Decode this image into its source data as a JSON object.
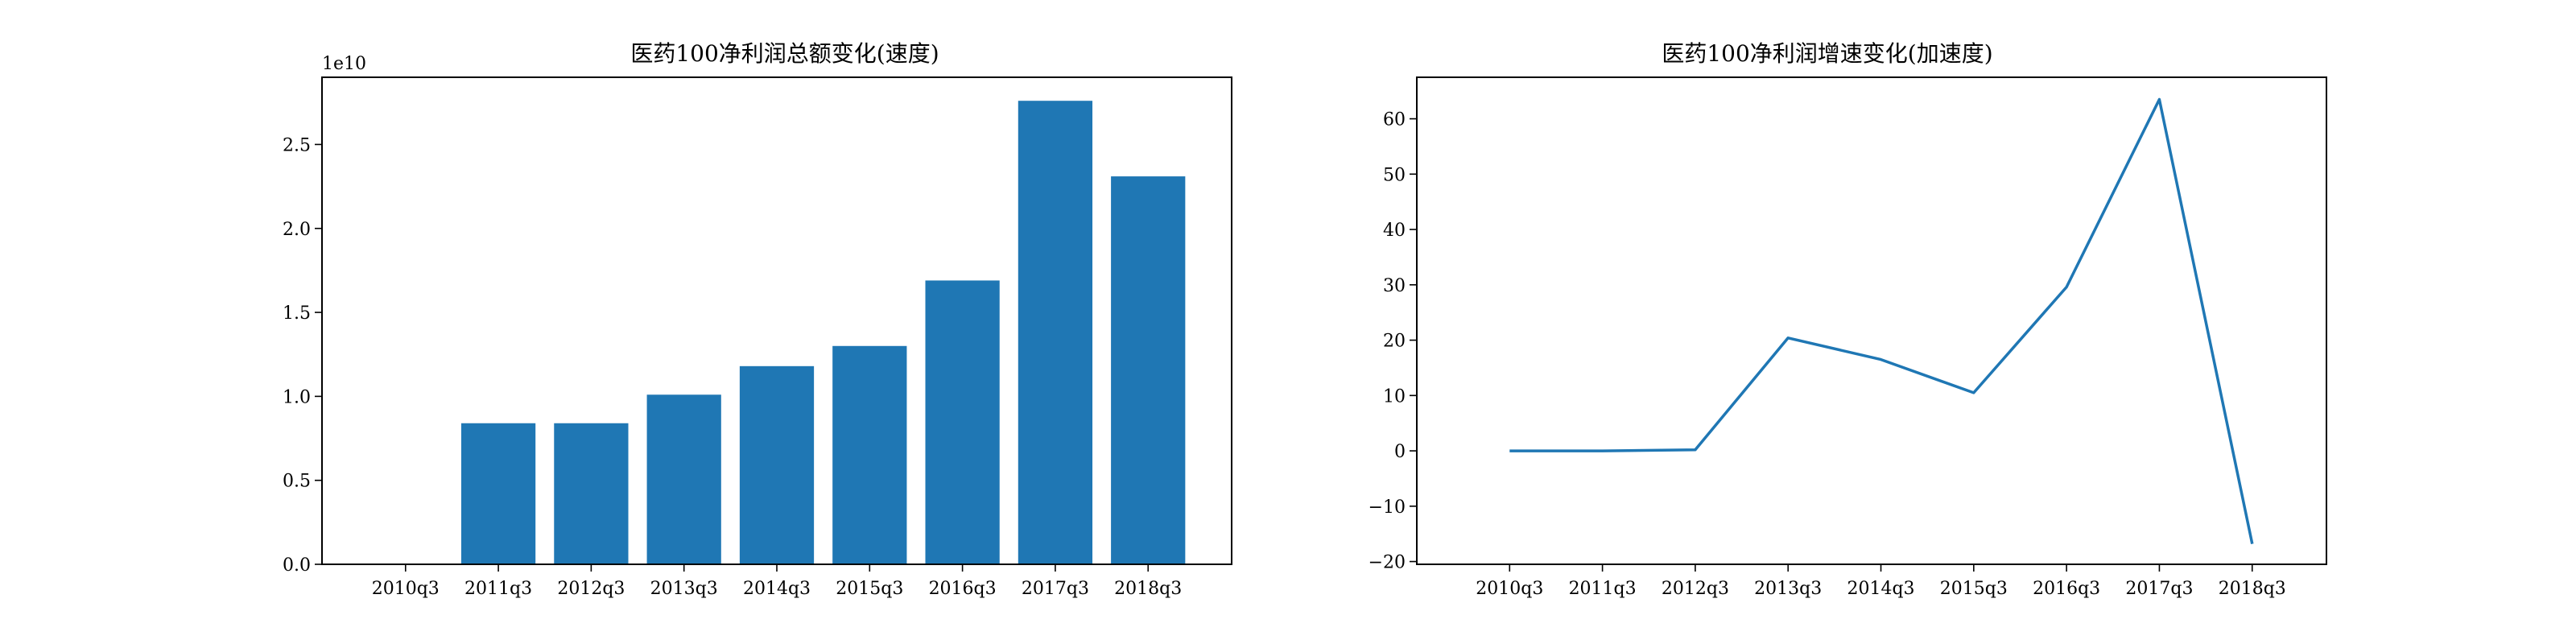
{
  "chart_data": [
    {
      "type": "bar",
      "title": "医药100净利润总额变化(速度)",
      "xlabel": "",
      "ylabel": "",
      "categories": [
        "2010q3",
        "2011q3",
        "2012q3",
        "2013q3",
        "2014q3",
        "2015q3",
        "2016q3",
        "2017q3",
        "2018q3"
      ],
      "values": [
        0,
        8400000000,
        8400000000,
        10100000000,
        11800000000,
        13000000000,
        16900000000,
        27600000000,
        23100000000
      ],
      "ylim": [
        0,
        29000000000
      ],
      "yticks": [
        0.0,
        0.5,
        1.0,
        1.5,
        2.0,
        2.5
      ],
      "ytick_labels": [
        "0.0",
        "0.5",
        "1.0",
        "1.5",
        "2.0",
        "2.5"
      ],
      "y_scale_label": "1e10",
      "y_scale": 10000000000,
      "grid": false,
      "color": "#1f77b4"
    },
    {
      "type": "line",
      "title": "医药100净利润增速变化(加速度)",
      "xlabel": "",
      "ylabel": "",
      "categories": [
        "2010q3",
        "2011q3",
        "2012q3",
        "2013q3",
        "2014q3",
        "2015q3",
        "2016q3",
        "2017q3",
        "2018q3"
      ],
      "values": [
        0,
        0,
        0.2,
        20.4,
        16.5,
        10.5,
        29.6,
        63.5,
        -16.8
      ],
      "ylim": [
        -20.5,
        67.5
      ],
      "yticks": [
        -20,
        -10,
        0,
        10,
        20,
        30,
        40,
        50,
        60
      ],
      "ytick_labels": [
        "−20",
        "−10",
        "0",
        "10",
        "20",
        "30",
        "40",
        "50",
        "60"
      ],
      "grid": false,
      "color": "#1f77b4"
    }
  ]
}
